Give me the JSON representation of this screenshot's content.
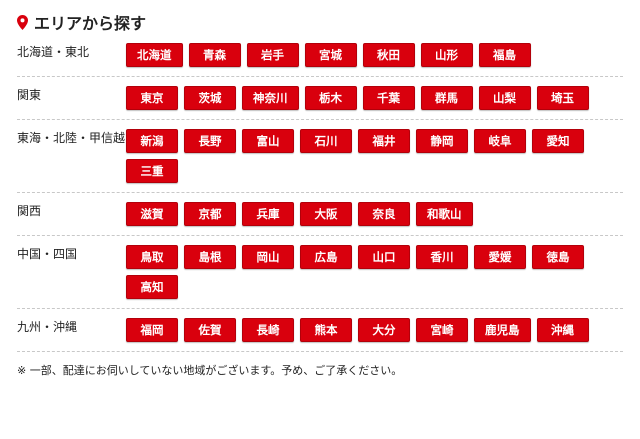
{
  "title": "エリアから探す",
  "accent": "#d9000d",
  "regions": [
    {
      "label": "北海道・東北",
      "prefs": [
        "北海道",
        "青森",
        "岩手",
        "宮城",
        "秋田",
        "山形",
        "福島"
      ]
    },
    {
      "label": "関東",
      "prefs": [
        "東京",
        "茨城",
        "神奈川",
        "栃木",
        "千葉",
        "群馬",
        "山梨",
        "埼玉"
      ]
    },
    {
      "label": "東海・北陸・甲信越",
      "prefs": [
        "新潟",
        "長野",
        "富山",
        "石川",
        "福井",
        "静岡",
        "岐阜",
        "愛知",
        "三重"
      ]
    },
    {
      "label": "関西",
      "prefs": [
        "滋賀",
        "京都",
        "兵庫",
        "大阪",
        "奈良",
        "和歌山"
      ]
    },
    {
      "label": "中国・四国",
      "prefs": [
        "鳥取",
        "島根",
        "岡山",
        "広島",
        "山口",
        "香川",
        "愛媛",
        "徳島",
        "高知"
      ]
    },
    {
      "label": "九州・沖縄",
      "prefs": [
        "福岡",
        "佐賀",
        "長崎",
        "熊本",
        "大分",
        "宮崎",
        "鹿児島",
        "沖縄"
      ]
    }
  ],
  "note": "※ 一部、配達にお伺いしていない地域がございます。予め、ご了承ください。"
}
